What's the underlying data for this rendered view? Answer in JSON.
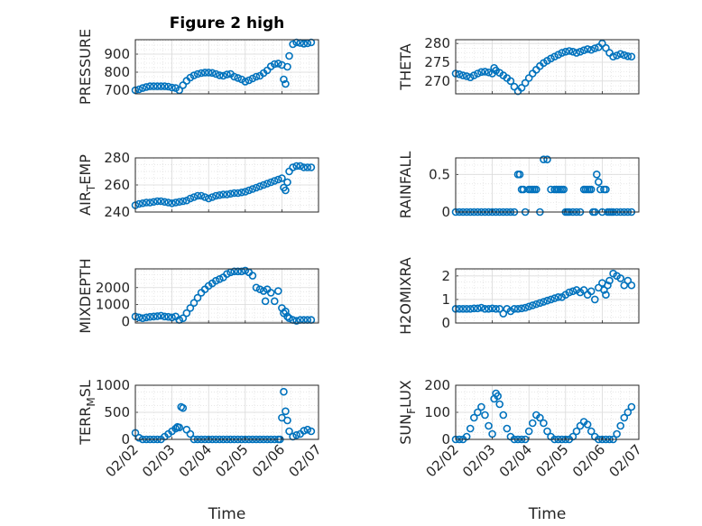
{
  "figure": {
    "title": "Figure 2 high",
    "xlabel": "Time",
    "marker_color": "#0072BD",
    "xtick_labels": [
      "02/02",
      "02/03",
      "02/04",
      "02/05",
      "02/06",
      "02/07"
    ]
  },
  "chart_data": [
    {
      "type": "scatter",
      "ylabel": "PRESSURE",
      "xlim": [
        0,
        5
      ],
      "ylim": [
        680,
        980
      ],
      "yticks": [
        700,
        800,
        900
      ],
      "ytick_labels": [
        "700",
        "800",
        "900"
      ],
      "grid": true,
      "x": [
        0,
        0.1,
        0.2,
        0.3,
        0.4,
        0.5,
        0.6,
        0.7,
        0.8,
        0.9,
        1,
        1.1,
        1.2,
        1.3,
        1.4,
        1.5,
        1.6,
        1.7,
        1.8,
        1.9,
        2,
        2.1,
        2.2,
        2.3,
        2.4,
        2.5,
        2.6,
        2.7,
        2.8,
        2.9,
        3,
        3.1,
        3.2,
        3.3,
        3.4,
        3.5,
        3.6,
        3.7,
        3.8,
        3.9,
        4,
        4.05,
        4.1,
        4.15,
        4.2,
        4.3,
        4.4,
        4.5,
        4.6,
        4.7,
        4.8
      ],
      "y": [
        700,
        705,
        712,
        718,
        722,
        722,
        722,
        722,
        722,
        720,
        715,
        712,
        700,
        728,
        752,
        770,
        782,
        790,
        795,
        798,
        798,
        796,
        790,
        783,
        780,
        787,
        790,
        775,
        768,
        760,
        748,
        755,
        765,
        775,
        780,
        795,
        810,
        832,
        845,
        848,
        840,
        760,
        735,
        830,
        890,
        955,
        965,
        962,
        958,
        960,
        965
      ]
    },
    {
      "type": "scatter",
      "ylabel": "THETA",
      "xlim": [
        0,
        5
      ],
      "ylim": [
        266.6,
        281
      ],
      "yticks": [
        270,
        275,
        280
      ],
      "ytick_labels": [
        "270",
        "275",
        "280"
      ],
      "grid": true,
      "x": [
        0,
        0.1,
        0.2,
        0.3,
        0.4,
        0.5,
        0.6,
        0.7,
        0.8,
        0.9,
        1,
        1.05,
        1.1,
        1.2,
        1.3,
        1.4,
        1.5,
        1.6,
        1.7,
        1.8,
        1.9,
        2,
        2.1,
        2.2,
        2.3,
        2.4,
        2.5,
        2.6,
        2.7,
        2.8,
        2.9,
        3,
        3.1,
        3.2,
        3.3,
        3.4,
        3.5,
        3.6,
        3.7,
        3.8,
        3.9,
        4,
        4.1,
        4.2,
        4.3,
        4.4,
        4.5,
        4.6,
        4.7,
        4.8
      ],
      "y": [
        272,
        271.8,
        271.5,
        271.3,
        271,
        271.5,
        272,
        272.4,
        272.5,
        272.3,
        272,
        273.5,
        272.8,
        272.2,
        271.5,
        270.8,
        270,
        268.5,
        267.3,
        268.2,
        269.5,
        270.8,
        272,
        273,
        274,
        274.8,
        275.4,
        276,
        276.5,
        277,
        277.5,
        277.8,
        278,
        277.8,
        277.5,
        277.8,
        278.2,
        278.5,
        278.3,
        278.7,
        279,
        280,
        278.8,
        277.5,
        276.5,
        276.8,
        277.2,
        276.9,
        276.6,
        276.5
      ]
    },
    {
      "type": "scatter",
      "ylabel": "AIR_TEMP",
      "xlim": [
        0,
        5
      ],
      "ylim": [
        240,
        280
      ],
      "yticks": [
        240,
        260,
        280
      ],
      "ytick_labels": [
        "240",
        "260",
        "280"
      ],
      "grid": true,
      "x": [
        0,
        0.1,
        0.2,
        0.3,
        0.4,
        0.5,
        0.6,
        0.7,
        0.8,
        0.9,
        1,
        1.1,
        1.2,
        1.3,
        1.4,
        1.5,
        1.6,
        1.7,
        1.8,
        1.9,
        2,
        2.1,
        2.2,
        2.3,
        2.4,
        2.5,
        2.6,
        2.7,
        2.8,
        2.9,
        3,
        3.1,
        3.2,
        3.3,
        3.4,
        3.5,
        3.6,
        3.7,
        3.8,
        3.9,
        4,
        4.05,
        4.1,
        4.15,
        4.2,
        4.3,
        4.4,
        4.5,
        4.6,
        4.7,
        4.8
      ],
      "y": [
        245,
        246,
        246.5,
        247,
        247,
        247.5,
        248,
        248,
        247.5,
        247,
        246.5,
        247,
        247.5,
        248,
        248.5,
        250,
        251,
        252,
        252,
        251,
        250,
        251,
        252,
        252.5,
        253,
        253,
        253.5,
        254,
        254,
        254.5,
        255,
        256,
        257,
        258,
        259,
        260,
        261,
        262,
        263,
        264,
        265,
        258,
        256,
        262,
        270,
        273,
        274,
        274,
        273,
        273,
        273
      ]
    },
    {
      "type": "scatter",
      "ylabel": "RAINFALL",
      "xlim": [
        0,
        5
      ],
      "ylim": [
        0,
        0.72
      ],
      "yticks": [
        0,
        0.5
      ],
      "ytick_labels": [
        "0",
        "0.5"
      ],
      "grid": true,
      "x": [
        0,
        0.1,
        0.2,
        0.3,
        0.4,
        0.5,
        0.6,
        0.7,
        0.8,
        0.9,
        1,
        1.1,
        1.2,
        1.3,
        1.4,
        1.5,
        1.6,
        1.7,
        1.75,
        1.8,
        1.85,
        1.9,
        2,
        2.05,
        2.1,
        2.15,
        2.2,
        2.3,
        2.4,
        2.5,
        2.6,
        2.7,
        2.75,
        2.8,
        2.85,
        2.9,
        2.95,
        3,
        3.05,
        3.1,
        3.2,
        3.3,
        3.4,
        3.5,
        3.55,
        3.6,
        3.65,
        3.7,
        3.75,
        3.8,
        3.85,
        3.9,
        3.95,
        4,
        4.05,
        4.1,
        4.15,
        4.2,
        4.25,
        4.3,
        4.4,
        4.5,
        4.6,
        4.7,
        4.8
      ],
      "y": [
        0,
        0,
        0,
        0,
        0,
        0,
        0,
        0,
        0,
        0,
        0,
        0,
        0,
        0,
        0,
        0,
        0,
        0.5,
        0.5,
        0.3,
        0.3,
        0,
        0.3,
        0.3,
        0.3,
        0.3,
        0.3,
        0,
        0.7,
        0.7,
        0.3,
        0.3,
        0.3,
        0.3,
        0.3,
        0.3,
        0.3,
        0,
        0,
        0,
        0,
        0,
        0,
        0.3,
        0.3,
        0.3,
        0.3,
        0.3,
        0,
        0,
        0.5,
        0.4,
        0.3,
        0,
        0.3,
        0.3,
        0,
        0,
        0,
        0,
        0,
        0,
        0,
        0,
        0
      ]
    },
    {
      "type": "scatter",
      "ylabel": "MIXDEPTH",
      "xlim": [
        0,
        5
      ],
      "ylim": [
        -80,
        3100
      ],
      "yticks": [
        0,
        1000,
        2000
      ],
      "ytick_labels": [
        "0",
        "1000",
        "2000"
      ],
      "grid": true,
      "x": [
        0,
        0.1,
        0.2,
        0.3,
        0.4,
        0.5,
        0.6,
        0.7,
        0.8,
        0.9,
        1,
        1.1,
        1.2,
        1.3,
        1.4,
        1.5,
        1.6,
        1.7,
        1.8,
        1.9,
        2,
        2.1,
        2.2,
        2.3,
        2.4,
        2.5,
        2.6,
        2.7,
        2.8,
        2.9,
        3,
        3.1,
        3.2,
        3.3,
        3.4,
        3.5,
        3.55,
        3.6,
        3.7,
        3.8,
        3.9,
        4,
        4.05,
        4.1,
        4.15,
        4.2,
        4.3,
        4.4,
        4.5,
        4.6,
        4.7,
        4.8
      ],
      "y": [
        300,
        250,
        200,
        250,
        280,
        300,
        320,
        350,
        300,
        280,
        250,
        300,
        100,
        200,
        500,
        800,
        1100,
        1400,
        1700,
        1900,
        2100,
        2250,
        2400,
        2500,
        2600,
        2800,
        2900,
        2950,
        2950,
        2950,
        3000,
        2900,
        2700,
        2000,
        1900,
        1800,
        1200,
        1900,
        1700,
        1200,
        1800,
        800,
        500,
        600,
        300,
        200,
        100,
        50,
        100,
        100,
        100,
        100
      ]
    },
    {
      "type": "scatter",
      "ylabel": "H2OMIXRA",
      "xlim": [
        0,
        5
      ],
      "ylim": [
        0,
        2.3
      ],
      "yticks": [
        0,
        1,
        2
      ],
      "ytick_labels": [
        "0",
        "1",
        "2"
      ],
      "grid": true,
      "x": [
        0,
        0.1,
        0.2,
        0.3,
        0.4,
        0.5,
        0.6,
        0.7,
        0.8,
        0.9,
        1,
        1.1,
        1.2,
        1.3,
        1.4,
        1.5,
        1.6,
        1.7,
        1.8,
        1.9,
        2,
        2.1,
        2.2,
        2.3,
        2.4,
        2.5,
        2.6,
        2.7,
        2.8,
        2.9,
        3,
        3.1,
        3.2,
        3.3,
        3.4,
        3.5,
        3.6,
        3.7,
        3.8,
        3.9,
        4,
        4.05,
        4.1,
        4.15,
        4.2,
        4.3,
        4.4,
        4.5,
        4.6,
        4.7,
        4.8
      ],
      "y": [
        0.6,
        0.6,
        0.6,
        0.6,
        0.6,
        0.62,
        0.62,
        0.65,
        0.6,
        0.6,
        0.62,
        0.6,
        0.6,
        0.4,
        0.6,
        0.5,
        0.6,
        0.6,
        0.62,
        0.65,
        0.7,
        0.75,
        0.8,
        0.85,
        0.9,
        0.95,
        1.0,
        1.05,
        1.1,
        1.1,
        1.2,
        1.3,
        1.35,
        1.4,
        1.3,
        1.4,
        1.2,
        1.35,
        1.0,
        1.5,
        1.7,
        1.4,
        1.2,
        1.6,
        1.8,
        2.1,
        2.0,
        1.9,
        1.6,
        1.8,
        1.6
      ]
    },
    {
      "type": "scatter",
      "ylabel": "TERR_MSL",
      "xlim": [
        0,
        5
      ],
      "ylim": [
        0,
        1000
      ],
      "yticks": [
        0,
        500,
        1000
      ],
      "ytick_labels": [
        "0",
        "500",
        "1000"
      ],
      "grid": true,
      "x": [
        0,
        0.1,
        0.2,
        0.3,
        0.4,
        0.5,
        0.6,
        0.7,
        0.8,
        0.9,
        1,
        1.1,
        1.15,
        1.2,
        1.25,
        1.3,
        1.4,
        1.5,
        1.6,
        1.7,
        1.8,
        1.9,
        2,
        2.1,
        2.2,
        2.3,
        2.4,
        2.5,
        2.6,
        2.7,
        2.8,
        2.9,
        3,
        3.1,
        3.2,
        3.3,
        3.4,
        3.5,
        3.6,
        3.7,
        3.8,
        3.9,
        3.95,
        4,
        4.05,
        4.1,
        4.15,
        4.2,
        4.3,
        4.4,
        4.5,
        4.6,
        4.7,
        4.8
      ],
      "y": [
        120,
        30,
        0,
        0,
        0,
        0,
        0,
        0,
        50,
        100,
        150,
        200,
        230,
        220,
        600,
        580,
        180,
        100,
        0,
        0,
        0,
        0,
        0,
        0,
        0,
        0,
        0,
        0,
        0,
        0,
        0,
        0,
        0,
        0,
        0,
        0,
        0,
        0,
        0,
        0,
        0,
        0,
        0,
        400,
        880,
        520,
        350,
        150,
        50,
        80,
        100,
        160,
        180,
        150
      ]
    },
    {
      "type": "scatter",
      "ylabel": "SUN_FLUX",
      "xlim": [
        0,
        5
      ],
      "ylim": [
        0,
        200
      ],
      "yticks": [
        0,
        100,
        200
      ],
      "ytick_labels": [
        "0",
        "100",
        "200"
      ],
      "grid": true,
      "x": [
        0,
        0.1,
        0.2,
        0.3,
        0.4,
        0.5,
        0.6,
        0.7,
        0.8,
        0.9,
        1,
        1.05,
        1.1,
        1.15,
        1.2,
        1.3,
        1.4,
        1.5,
        1.6,
        1.7,
        1.8,
        1.9,
        2,
        2.1,
        2.2,
        2.3,
        2.4,
        2.5,
        2.6,
        2.7,
        2.8,
        2.9,
        3,
        3.1,
        3.2,
        3.3,
        3.4,
        3.5,
        3.6,
        3.7,
        3.8,
        3.9,
        4,
        4.1,
        4.2,
        4.3,
        4.4,
        4.5,
        4.6,
        4.7,
        4.8
      ],
      "y": [
        0,
        0,
        0,
        10,
        40,
        80,
        100,
        120,
        90,
        50,
        20,
        150,
        170,
        160,
        130,
        90,
        40,
        10,
        0,
        0,
        0,
        0,
        30,
        60,
        90,
        80,
        60,
        30,
        10,
        0,
        0,
        0,
        0,
        0,
        10,
        30,
        50,
        65,
        55,
        30,
        10,
        0,
        0,
        0,
        0,
        0,
        20,
        50,
        80,
        100,
        120
      ]
    }
  ]
}
